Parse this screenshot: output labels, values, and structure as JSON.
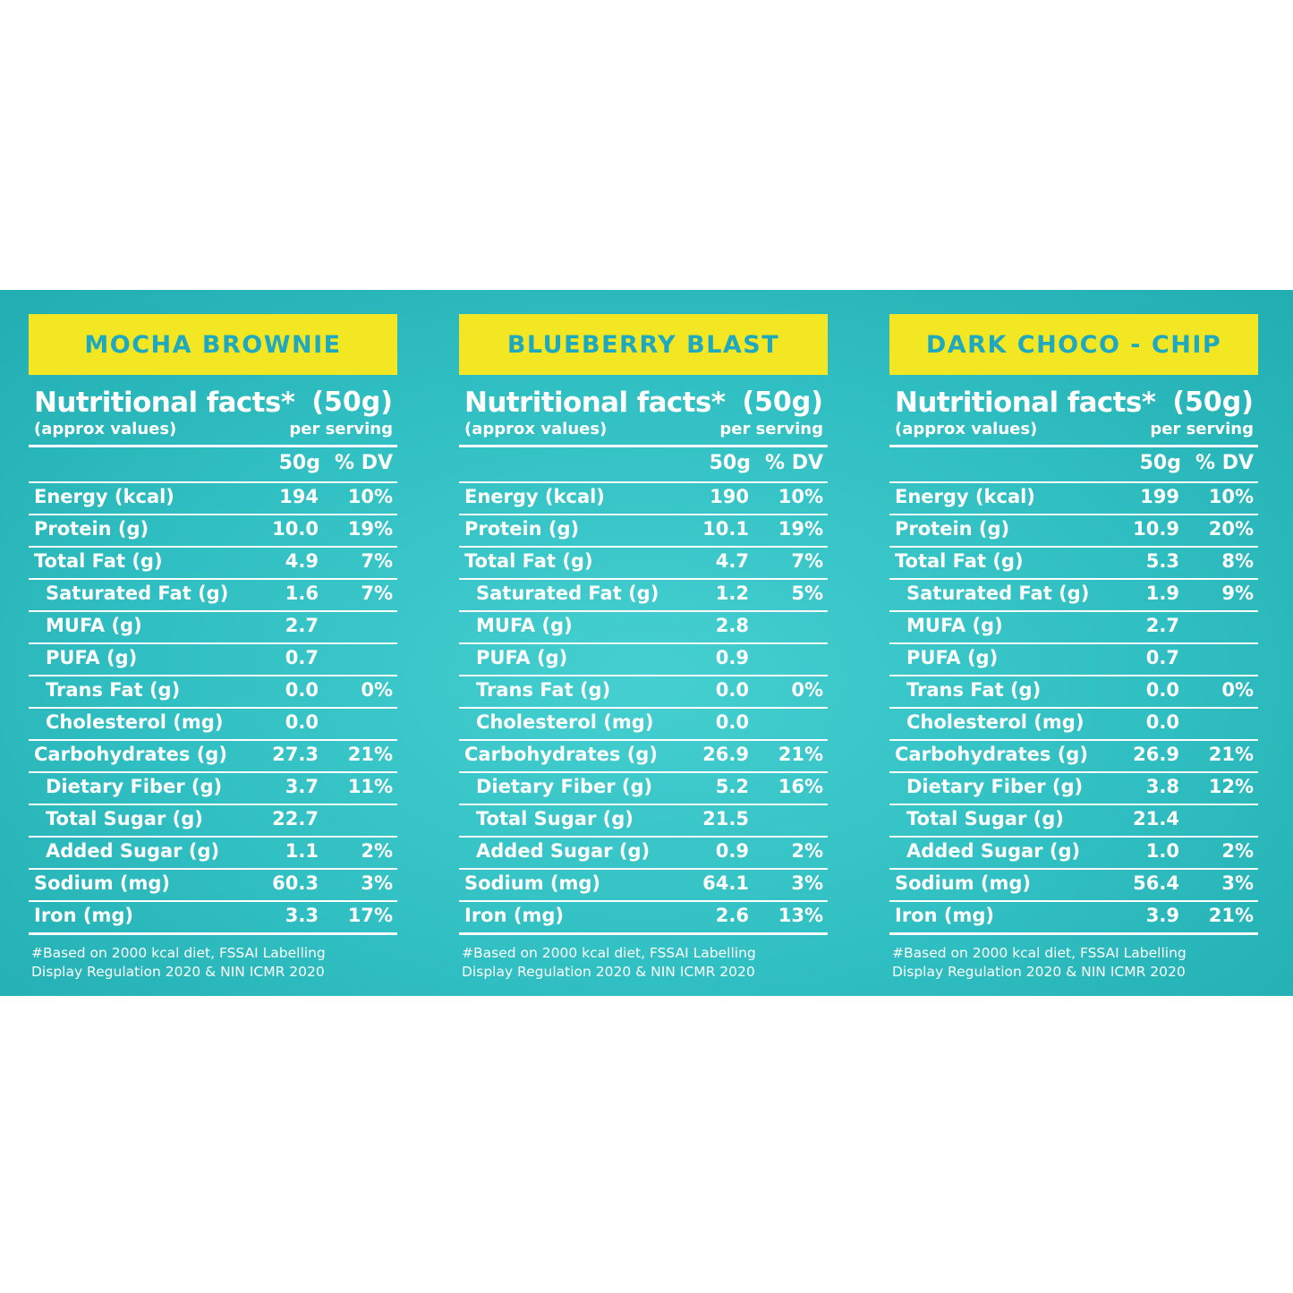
{
  "colors": {
    "panel_background": "#2fbcbf",
    "flavor_banner": "#f3e622",
    "flavor_text": "#1ea9c0",
    "text": "#ffffff"
  },
  "heading": {
    "title": "Nutritional facts*",
    "weight": "(50g)",
    "subtitle": "(approx values)",
    "per_serving": "per serving"
  },
  "columns": {
    "amount": "50g",
    "dv": "% DV"
  },
  "footnote": {
    "line1": "#Based on 2000 kcal diet, FSSAI Labelling",
    "line2": "Display Regulation 2020 & NIN ICMR 2020"
  },
  "labels": [
    "Energy (kcal)",
    "Protein (g)",
    "Total Fat (g)",
    "Saturated Fat (g)",
    "MUFA (g)",
    "PUFA (g)",
    "Trans Fat (g)",
    "Cholesterol (mg)",
    "Carbohydrates (g)",
    "Dietary Fiber (g)",
    "Total Sugar (g)",
    "Added Sugar (g)",
    "Sodium (mg)",
    "Iron (mg)"
  ],
  "products": [
    {
      "flavor": "MOCHA BROWNIE",
      "rows": [
        {
          "value": "194",
          "dv": "10%"
        },
        {
          "value": "10.0",
          "dv": "19%"
        },
        {
          "value": "4.9",
          "dv": "7%"
        },
        {
          "value": "1.6",
          "dv": "7%"
        },
        {
          "value": "2.7",
          "dv": ""
        },
        {
          "value": "0.7",
          "dv": ""
        },
        {
          "value": "0.0",
          "dv": "0%"
        },
        {
          "value": "0.0",
          "dv": ""
        },
        {
          "value": "27.3",
          "dv": "21%"
        },
        {
          "value": "3.7",
          "dv": "11%"
        },
        {
          "value": "22.7",
          "dv": ""
        },
        {
          "value": "1.1",
          "dv": "2%"
        },
        {
          "value": "60.3",
          "dv": "3%"
        },
        {
          "value": "3.3",
          "dv": "17%"
        }
      ]
    },
    {
      "flavor": "BLUEBERRY BLAST",
      "rows": [
        {
          "value": "190",
          "dv": "10%"
        },
        {
          "value": "10.1",
          "dv": "19%"
        },
        {
          "value": "4.7",
          "dv": "7%"
        },
        {
          "value": "1.2",
          "dv": "5%"
        },
        {
          "value": "2.8",
          "dv": ""
        },
        {
          "value": "0.9",
          "dv": ""
        },
        {
          "value": "0.0",
          "dv": "0%"
        },
        {
          "value": "0.0",
          "dv": ""
        },
        {
          "value": "26.9",
          "dv": "21%"
        },
        {
          "value": "5.2",
          "dv": "16%"
        },
        {
          "value": "21.5",
          "dv": ""
        },
        {
          "value": "0.9",
          "dv": "2%"
        },
        {
          "value": "64.1",
          "dv": "3%"
        },
        {
          "value": "2.6",
          "dv": "13%"
        }
      ]
    },
    {
      "flavor": "DARK CHOCO - CHIP",
      "rows": [
        {
          "value": "199",
          "dv": "10%"
        },
        {
          "value": "10.9",
          "dv": "20%"
        },
        {
          "value": "5.3",
          "dv": "8%"
        },
        {
          "value": "1.9",
          "dv": "9%"
        },
        {
          "value": "2.7",
          "dv": ""
        },
        {
          "value": "0.7",
          "dv": ""
        },
        {
          "value": "0.0",
          "dv": "0%"
        },
        {
          "value": "0.0",
          "dv": ""
        },
        {
          "value": "26.9",
          "dv": "21%"
        },
        {
          "value": "3.8",
          "dv": "12%"
        },
        {
          "value": "21.4",
          "dv": ""
        },
        {
          "value": "1.0",
          "dv": "2%"
        },
        {
          "value": "56.4",
          "dv": "3%"
        },
        {
          "value": "3.9",
          "dv": "21%"
        }
      ]
    }
  ]
}
